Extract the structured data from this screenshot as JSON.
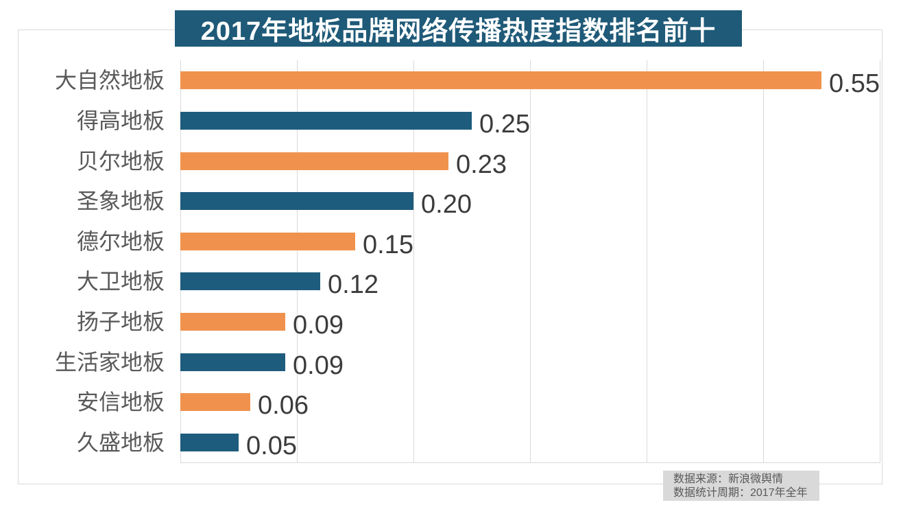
{
  "title": "2017年地板品牌网络传播热度指数排名前十",
  "source_note": {
    "line1": "数据来源：新浪微舆情",
    "line2": "数据统计周期：2017年全年"
  },
  "colors": {
    "banner_bg": "#1F5A78",
    "banner_text": "#FFFFFF",
    "bar_orange": "#F0924D",
    "bar_blue": "#1E5C7D",
    "grid_line": "#D9D9D9",
    "category_label": "#595959",
    "value_label": "#3C3C3C",
    "source_bg": "#D9D9D9",
    "source_text": "#595959",
    "background": "#FFFFFF"
  },
  "chart_data": {
    "type": "bar",
    "orientation": "horizontal",
    "title": "2017年地板品牌网络传播热度指数排名前十",
    "categories": [
      "大自然地板",
      "得高地板",
      "贝尔地板",
      "圣象地板",
      "德尔地板",
      "大卫地板",
      "扬子地板",
      "生活家地板",
      "安信地板",
      "久盛地板"
    ],
    "values": [
      0.55,
      0.25,
      0.23,
      0.2,
      0.15,
      0.12,
      0.09,
      0.09,
      0.06,
      0.05
    ],
    "value_labels": [
      "0.55",
      "0.25",
      "0.23",
      "0.20",
      "0.15",
      "0.12",
      "0.09",
      "0.09",
      "0.06",
      "0.05"
    ],
    "bar_color_pattern": [
      "#F0924D",
      "#1E5C7D"
    ],
    "xlabel": "",
    "ylabel": "",
    "xlim": [
      0,
      0.6
    ],
    "x_gridline_step": 0.1,
    "grid": true,
    "legend": false,
    "sort_order": "descending"
  }
}
